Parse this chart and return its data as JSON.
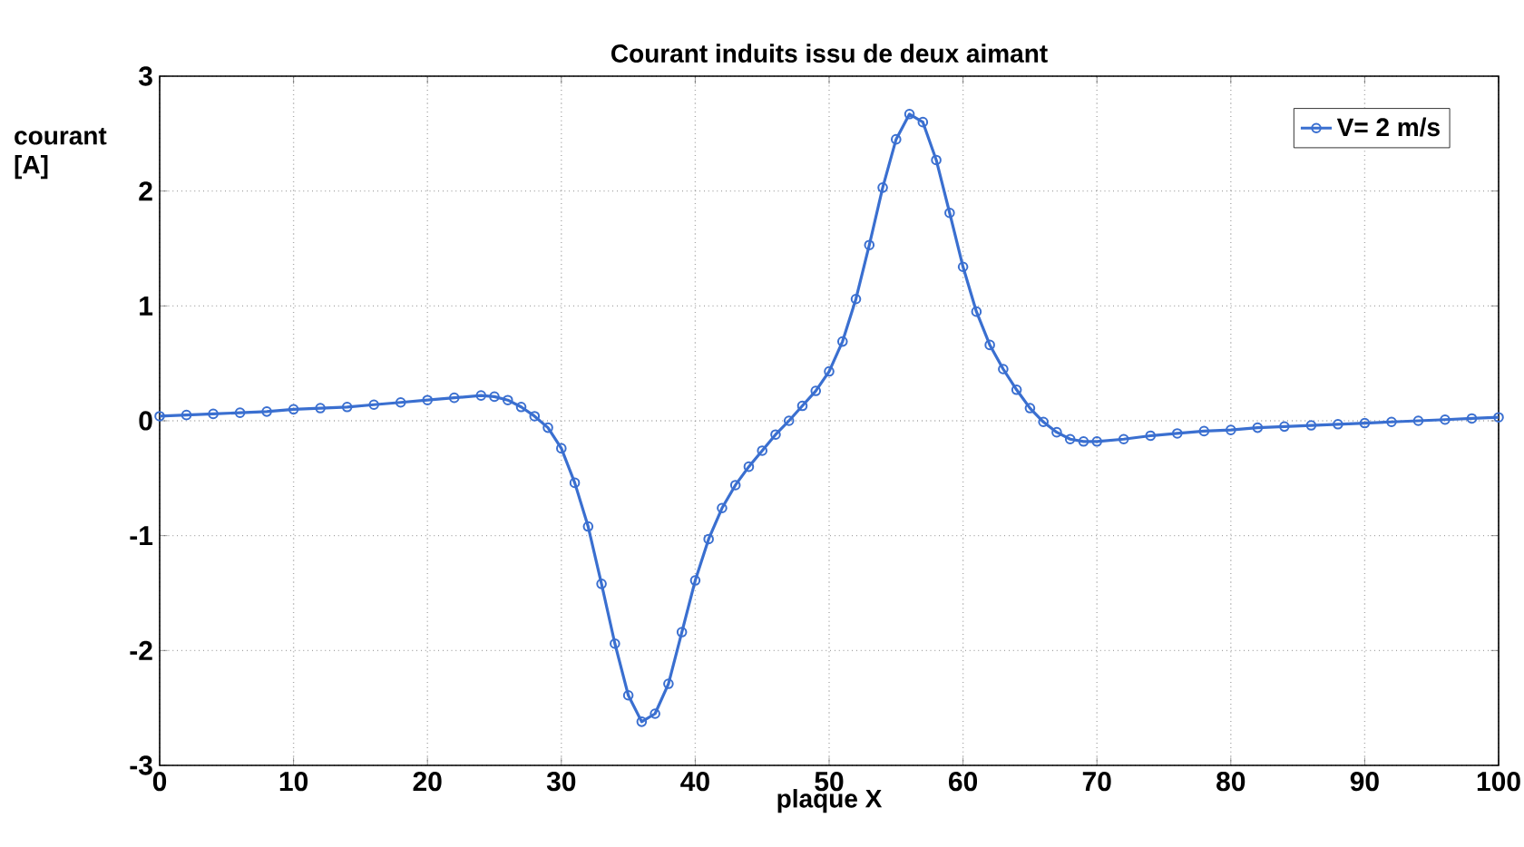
{
  "chart_data": {
    "type": "line",
    "title": "Courant induits issu de deux aimant",
    "xlabel": "plaque X",
    "ylabel": "courant [A]",
    "x": [
      0,
      2,
      4,
      6,
      8,
      10,
      12,
      14,
      16,
      18,
      20,
      22,
      24,
      25,
      26,
      27,
      28,
      29,
      30,
      31,
      32,
      33,
      34,
      35,
      36,
      37,
      38,
      39,
      40,
      41,
      42,
      43,
      44,
      45,
      46,
      47,
      48,
      49,
      50,
      51,
      52,
      53,
      54,
      55,
      56,
      57,
      58,
      59,
      60,
      61,
      62,
      63,
      64,
      65,
      66,
      67,
      68,
      69,
      70,
      72,
      74,
      76,
      78,
      80,
      82,
      84,
      86,
      88,
      90,
      92,
      94,
      96,
      98,
      100
    ],
    "series": [
      {
        "name": "V= 2 m/s",
        "color": "#3a6fd0",
        "values": [
          0.04,
          0.05,
          0.06,
          0.07,
          0.08,
          0.1,
          0.11,
          0.12,
          0.14,
          0.16,
          0.18,
          0.2,
          0.22,
          0.21,
          0.18,
          0.12,
          0.04,
          -0.06,
          -0.24,
          -0.54,
          -0.92,
          -1.42,
          -1.94,
          -2.39,
          -2.62,
          -2.55,
          -2.29,
          -1.84,
          -1.39,
          -1.03,
          -0.76,
          -0.56,
          -0.4,
          -0.26,
          -0.12,
          0.0,
          0.13,
          0.26,
          0.43,
          0.69,
          1.06,
          1.53,
          2.03,
          2.45,
          2.67,
          2.6,
          2.27,
          1.81,
          1.34,
          0.95,
          0.66,
          0.45,
          0.27,
          0.11,
          -0.01,
          -0.1,
          -0.16,
          -0.18,
          -0.18,
          -0.16,
          -0.13,
          -0.11,
          -0.09,
          -0.08,
          -0.06,
          -0.05,
          -0.04,
          -0.03,
          -0.02,
          -0.01,
          0.0,
          0.01,
          0.02,
          0.03
        ]
      }
    ],
    "xlim": [
      0,
      100
    ],
    "ylim": [
      -3,
      3
    ],
    "xticks": [
      0,
      10,
      20,
      30,
      40,
      50,
      60,
      70,
      80,
      90,
      100
    ],
    "yticks": [
      -3,
      -2,
      -1,
      0,
      1,
      2,
      3
    ],
    "grid": true,
    "legend": "top right",
    "marker": "circle",
    "line_style": "solid"
  }
}
